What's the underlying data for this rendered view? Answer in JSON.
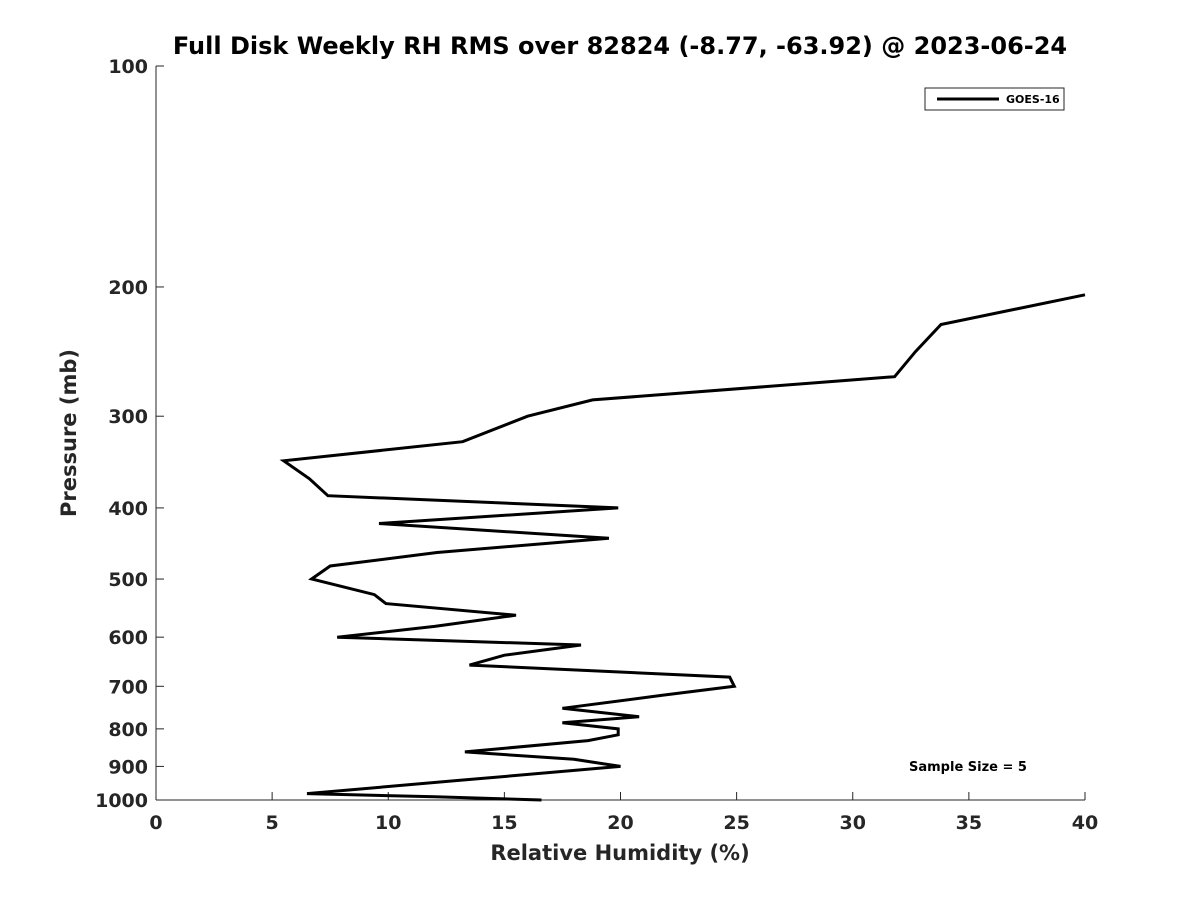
{
  "chart_data": {
    "type": "line",
    "title": "Full Disk Weekly RH RMS over 82824 (-8.77, -63.92) @ 2023-06-24",
    "xlabel": "Relative Humidity (%)",
    "ylabel": "Pressure (mb)",
    "xlim": [
      0,
      40
    ],
    "ylim": [
      100,
      1000
    ],
    "yscale": "log",
    "y_reversed": true,
    "xticks": [
      "0",
      "5",
      "10",
      "15",
      "20",
      "25",
      "30",
      "35",
      "40"
    ],
    "yticks": [
      "100",
      "200",
      "300",
      "400",
      "500",
      "600",
      "700",
      "800",
      "900",
      "1000"
    ],
    "grid": false,
    "legend": {
      "placement": "top-right",
      "entries": [
        "GOES-16"
      ]
    },
    "annotation": "Sample Size = 5",
    "series": [
      {
        "name": "GOES-16",
        "color": "#000000",
        "x": [
          40.0,
          33.8,
          32.7,
          31.8,
          18.8,
          16.0,
          13.2,
          5.5,
          6.6,
          7.4,
          19.9,
          9.6,
          19.5,
          12.1,
          7.5,
          6.7,
          9.4,
          9.9,
          15.5,
          12.0,
          7.8,
          18.3,
          15.0,
          13.5,
          24.7,
          24.9,
          21.8,
          17.5,
          20.8,
          17.5,
          19.9,
          19.9,
          18.6,
          13.3,
          18.0,
          20.0,
          13.1,
          6.5,
          12.0,
          16.6
        ],
        "y": [
          205,
          225,
          245,
          265,
          285,
          300,
          325,
          345,
          365,
          385,
          400,
          420,
          440,
          460,
          480,
          500,
          525,
          540,
          560,
          580,
          600,
          615,
          635,
          655,
          680,
          700,
          720,
          750,
          770,
          785,
          800,
          815,
          830,
          860,
          880,
          900,
          940,
          980,
          990,
          1000
        ]
      }
    ]
  }
}
